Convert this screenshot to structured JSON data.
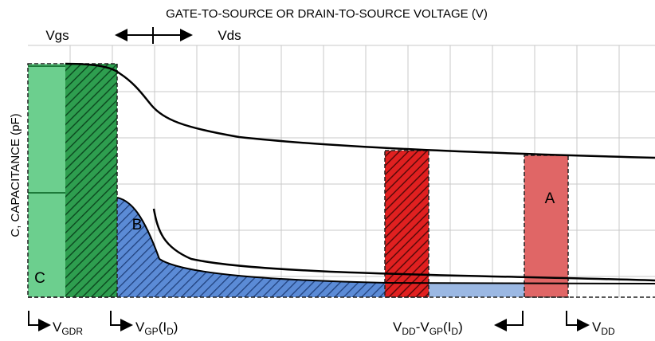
{
  "title": "GATE-TO-SOURCE OR DRAIN-TO-SOURCE VOLTAGE (V)",
  "left_label": "Vgs",
  "right_label": "Vds",
  "y_label": "C, CAPACITANCE (pF)",
  "regions": [
    "C",
    "B",
    "A"
  ],
  "markers": [
    {
      "main": "V",
      "sub": "GDR"
    },
    {
      "main": "V",
      "sub": "GP",
      "paren_open": "(I",
      "paren_sub": "D",
      "paren_close": ")"
    },
    {
      "main": "V",
      "sub": "DD",
      "mid": "-V",
      "sub2": "GP",
      "paren_open": "(I",
      "paren_sub": "D",
      "paren_close": ")"
    },
    {
      "main": "V",
      "sub": "DD"
    }
  ]
}
